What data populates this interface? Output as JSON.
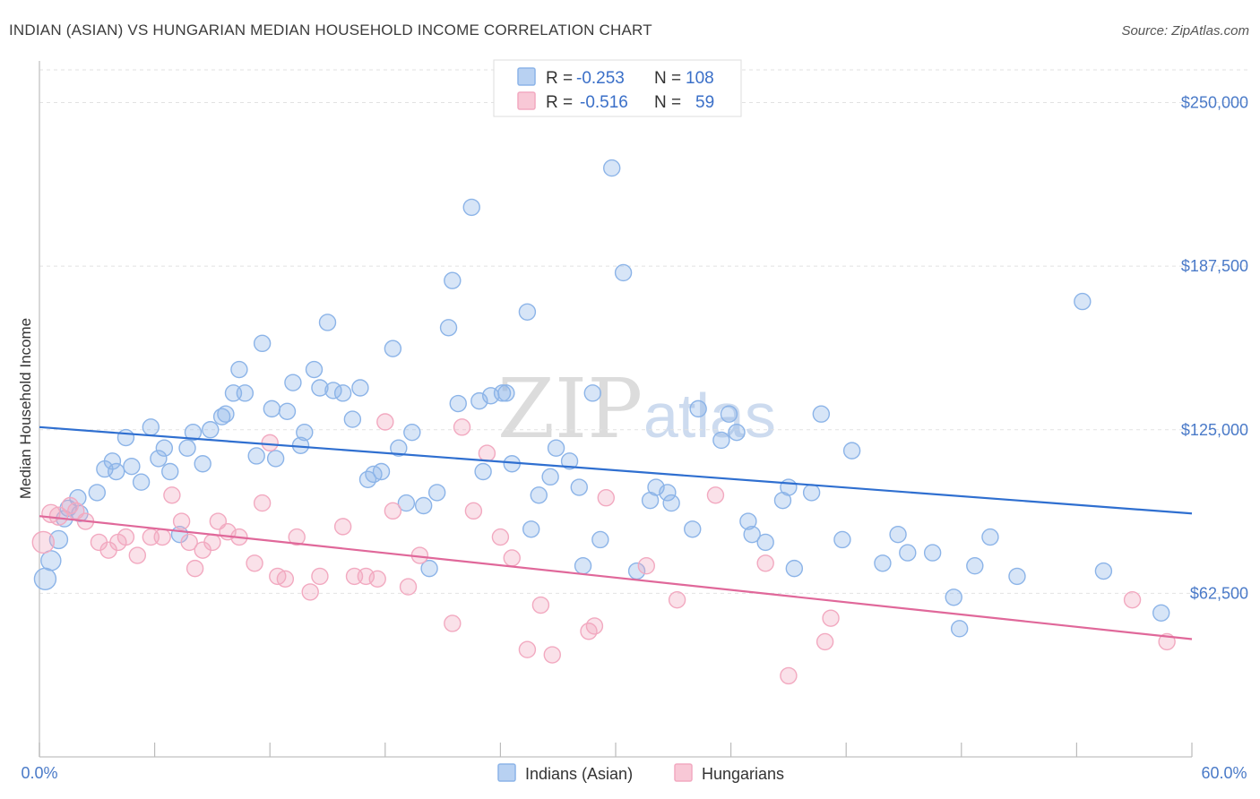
{
  "chart_data": {
    "type": "scatter",
    "title": "INDIAN (ASIAN) VS HUNGARIAN MEDIAN HOUSEHOLD INCOME CORRELATION CHART",
    "source": "Source: ZipAtlas.com",
    "ylabel": "Median Household Income",
    "xlabel": "",
    "xlim": [
      0,
      60
    ],
    "ylim": [
      0,
      262500
    ],
    "x_tick_labels": [
      "0.0%",
      "60.0%"
    ],
    "y_tick_values": [
      62500,
      125000,
      187500,
      250000
    ],
    "y_tick_labels": [
      "$62,500",
      "$125,000",
      "$187,500",
      "$250,000"
    ],
    "grid": true,
    "watermark": {
      "zip": "ZIP",
      "atlas": "atlas"
    },
    "legend": {
      "placement": "top-center",
      "entries": [
        {
          "r_label": "R = ",
          "r_value": "-0.253",
          "n_label": "N = ",
          "n_value": "108"
        },
        {
          "r_label": "R = ",
          "r_value": "-0.516",
          "n_label": "N = ",
          "n_value": "59"
        }
      ]
    },
    "series": [
      {
        "name": "Indians (Asian)",
        "color": "#8cb4e8",
        "line_color": "#2f6fd0",
        "trend": {
          "x": [
            0,
            60
          ],
          "y": [
            126000,
            93000
          ]
        },
        "points": [
          [
            0.3,
            68000
          ],
          [
            0.6,
            75000
          ],
          [
            1.0,
            83000
          ],
          [
            1.3,
            91000
          ],
          [
            1.5,
            95000
          ],
          [
            2.0,
            99000
          ],
          [
            2.1,
            93000
          ],
          [
            3.0,
            101000
          ],
          [
            3.4,
            110000
          ],
          [
            3.8,
            113000
          ],
          [
            4.0,
            109000
          ],
          [
            4.5,
            122000
          ],
          [
            4.8,
            111000
          ],
          [
            5.3,
            105000
          ],
          [
            5.8,
            126000
          ],
          [
            6.2,
            114000
          ],
          [
            6.5,
            118000
          ],
          [
            6.8,
            109000
          ],
          [
            7.3,
            85000
          ],
          [
            7.7,
            118000
          ],
          [
            8.0,
            124000
          ],
          [
            8.5,
            112000
          ],
          [
            8.9,
            125000
          ],
          [
            9.5,
            130000
          ],
          [
            9.7,
            131000
          ],
          [
            10.1,
            139000
          ],
          [
            10.4,
            148000
          ],
          [
            10.7,
            139000
          ],
          [
            11.3,
            115000
          ],
          [
            11.6,
            158000
          ],
          [
            12.1,
            133000
          ],
          [
            12.3,
            114000
          ],
          [
            12.9,
            132000
          ],
          [
            13.2,
            143000
          ],
          [
            13.6,
            119000
          ],
          [
            13.8,
            124000
          ],
          [
            14.3,
            148000
          ],
          [
            14.6,
            141000
          ],
          [
            15.0,
            166000
          ],
          [
            15.3,
            140000
          ],
          [
            15.8,
            139000
          ],
          [
            16.3,
            129000
          ],
          [
            16.7,
            141000
          ],
          [
            17.1,
            106000
          ],
          [
            17.4,
            108000
          ],
          [
            17.8,
            109000
          ],
          [
            18.4,
            156000
          ],
          [
            18.7,
            118000
          ],
          [
            19.1,
            97000
          ],
          [
            19.4,
            124000
          ],
          [
            20.0,
            96000
          ],
          [
            20.3,
            72000
          ],
          [
            20.7,
            101000
          ],
          [
            21.3,
            164000
          ],
          [
            21.5,
            182000
          ],
          [
            21.8,
            135000
          ],
          [
            22.5,
            210000
          ],
          [
            22.9,
            136000
          ],
          [
            23.1,
            109000
          ],
          [
            23.5,
            138000
          ],
          [
            24.1,
            139000
          ],
          [
            24.3,
            139000
          ],
          [
            24.6,
            112000
          ],
          [
            25.4,
            170000
          ],
          [
            25.6,
            87000
          ],
          [
            26.0,
            100000
          ],
          [
            26.6,
            107000
          ],
          [
            26.9,
            118000
          ],
          [
            27.6,
            113000
          ],
          [
            28.1,
            103000
          ],
          [
            28.3,
            73000
          ],
          [
            28.8,
            139000
          ],
          [
            29.2,
            83000
          ],
          [
            29.8,
            225000
          ],
          [
            30.4,
            185000
          ],
          [
            31.1,
            71000
          ],
          [
            31.8,
            98000
          ],
          [
            32.1,
            103000
          ],
          [
            32.7,
            101000
          ],
          [
            32.9,
            97000
          ],
          [
            34.0,
            87000
          ],
          [
            34.3,
            133000
          ],
          [
            35.5,
            121000
          ],
          [
            35.9,
            131000
          ],
          [
            36.3,
            124000
          ],
          [
            36.9,
            90000
          ],
          [
            37.1,
            85000
          ],
          [
            37.8,
            82000
          ],
          [
            38.7,
            98000
          ],
          [
            39.0,
            103000
          ],
          [
            39.3,
            72000
          ],
          [
            40.2,
            101000
          ],
          [
            40.7,
            131000
          ],
          [
            41.8,
            83000
          ],
          [
            42.3,
            117000
          ],
          [
            43.9,
            74000
          ],
          [
            44.7,
            85000
          ],
          [
            45.2,
            78000
          ],
          [
            46.5,
            78000
          ],
          [
            47.6,
            61000
          ],
          [
            47.9,
            49000
          ],
          [
            48.7,
            73000
          ],
          [
            49.5,
            84000
          ],
          [
            50.9,
            69000
          ],
          [
            54.3,
            174000
          ],
          [
            55.4,
            71000
          ],
          [
            58.4,
            55000
          ]
        ],
        "sizes": [
          12,
          11,
          10,
          9,
          9,
          9,
          9,
          9,
          9,
          9,
          9,
          9,
          9,
          9,
          9,
          9,
          9,
          9,
          9,
          9,
          9,
          9,
          9,
          9,
          9,
          9,
          9,
          9,
          9,
          9,
          9,
          9,
          9,
          9,
          9,
          9,
          9,
          9,
          9,
          9,
          9,
          9,
          9,
          9,
          9,
          9,
          9,
          9,
          9,
          9,
          9,
          9,
          9,
          9,
          9,
          9,
          9,
          9,
          9,
          9,
          9,
          9,
          9,
          9,
          9,
          9,
          9,
          9,
          9,
          9,
          9,
          9,
          9,
          9,
          9,
          9,
          9,
          9,
          9,
          9,
          9,
          9,
          9,
          9,
          9,
          9,
          9,
          9,
          9,
          9,
          9,
          9,
          9,
          9,
          9,
          9,
          9,
          9,
          9,
          9,
          9,
          9,
          9,
          9,
          9,
          9,
          9,
          9
        ]
      },
      {
        "name": "Hungarians",
        "color": "#f2a9c0",
        "line_color": "#e0689a",
        "trend": {
          "x": [
            0,
            60
          ],
          "y": [
            92000,
            45000
          ]
        },
        "points": [
          [
            0.2,
            82000
          ],
          [
            0.6,
            93000
          ],
          [
            1.0,
            92000
          ],
          [
            1.6,
            96000
          ],
          [
            1.9,
            94000
          ],
          [
            2.4,
            90000
          ],
          [
            3.1,
            82000
          ],
          [
            3.6,
            79000
          ],
          [
            4.1,
            82000
          ],
          [
            4.5,
            84000
          ],
          [
            5.1,
            77000
          ],
          [
            5.8,
            84000
          ],
          [
            6.4,
            84000
          ],
          [
            6.9,
            100000
          ],
          [
            7.4,
            90000
          ],
          [
            7.8,
            82000
          ],
          [
            8.1,
            72000
          ],
          [
            8.5,
            79000
          ],
          [
            9.0,
            82000
          ],
          [
            9.3,
            90000
          ],
          [
            9.8,
            86000
          ],
          [
            10.4,
            84000
          ],
          [
            11.2,
            74000
          ],
          [
            11.6,
            97000
          ],
          [
            12.0,
            120000
          ],
          [
            12.4,
            69000
          ],
          [
            12.8,
            68000
          ],
          [
            13.4,
            84000
          ],
          [
            14.1,
            63000
          ],
          [
            14.6,
            69000
          ],
          [
            15.8,
            88000
          ],
          [
            16.4,
            69000
          ],
          [
            17.0,
            69000
          ],
          [
            17.6,
            68000
          ],
          [
            18.0,
            128000
          ],
          [
            18.4,
            94000
          ],
          [
            19.2,
            65000
          ],
          [
            19.8,
            77000
          ],
          [
            21.5,
            51000
          ],
          [
            22.0,
            126000
          ],
          [
            22.6,
            94000
          ],
          [
            23.3,
            116000
          ],
          [
            24.0,
            84000
          ],
          [
            24.6,
            76000
          ],
          [
            25.4,
            41000
          ],
          [
            26.1,
            58000
          ],
          [
            26.7,
            39000
          ],
          [
            28.6,
            48000
          ],
          [
            28.9,
            50000
          ],
          [
            29.5,
            99000
          ],
          [
            31.6,
            73000
          ],
          [
            33.2,
            60000
          ],
          [
            35.2,
            100000
          ],
          [
            37.8,
            74000
          ],
          [
            39.0,
            31000
          ],
          [
            40.9,
            44000
          ],
          [
            41.2,
            53000
          ],
          [
            56.9,
            60000
          ],
          [
            58.7,
            44000
          ]
        ],
        "sizes": [
          12,
          10,
          10,
          9,
          9,
          9,
          9,
          9,
          9,
          9,
          9,
          9,
          9,
          9,
          9,
          9,
          9,
          9,
          9,
          9,
          9,
          9,
          9,
          9,
          9,
          9,
          9,
          9,
          9,
          9,
          9,
          9,
          9,
          9,
          9,
          9,
          9,
          9,
          9,
          9,
          9,
          9,
          9,
          9,
          9,
          9,
          9,
          9,
          9,
          9,
          9,
          9,
          9,
          9,
          9,
          9,
          9,
          9,
          9
        ]
      }
    ]
  }
}
